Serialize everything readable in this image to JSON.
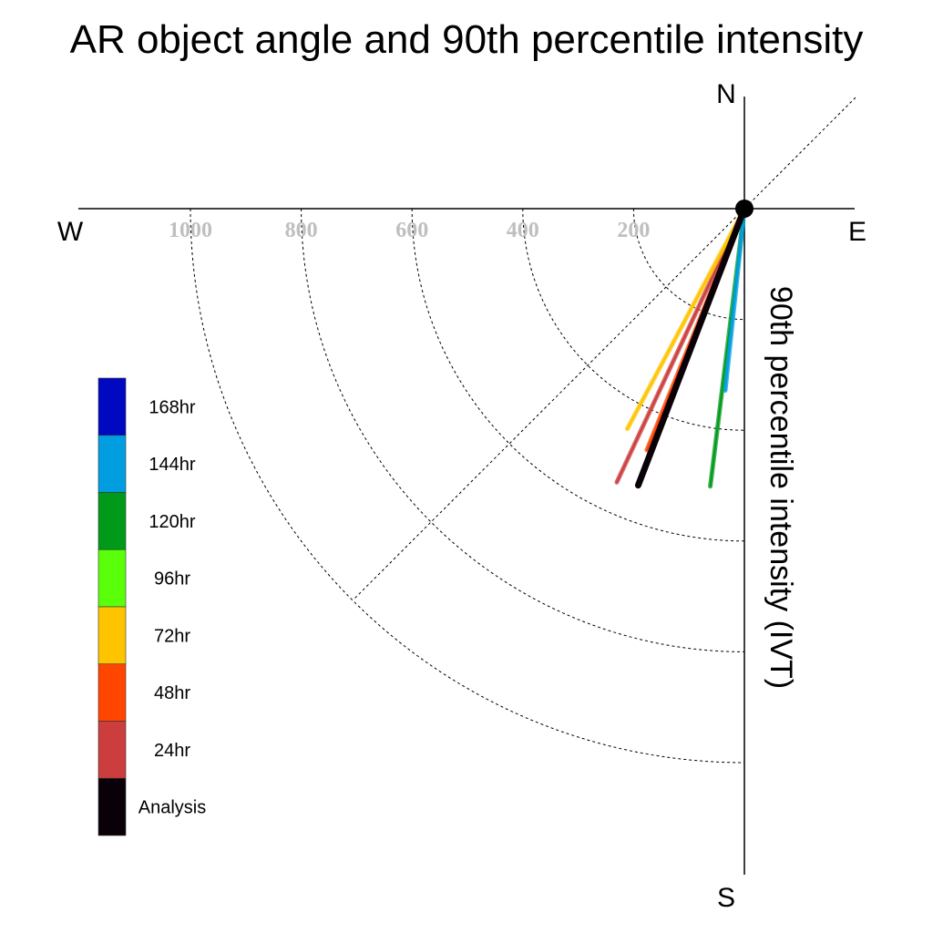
{
  "chart_data": {
    "type": "polar-line",
    "title": "AR object angle and 90th percentile intensity",
    "ylabel": "90th percentile intensity (IVT)",
    "compass": {
      "north": "N",
      "south": "S",
      "east": "E",
      "west": "W"
    },
    "radial_ticks": [
      200,
      400,
      600,
      800,
      1000
    ],
    "radial_range": [
      0,
      1180
    ],
    "series": [
      {
        "name": "120hr",
        "color": "#00991a",
        "angle_deg": 187,
        "intensity": 505
      },
      {
        "name": "144hr",
        "color": "#009ee0",
        "angle_deg": 186,
        "intensity": 330
      },
      {
        "name": "24hr",
        "color": "#cc3d3d",
        "angle_deg": 205,
        "intensity": 545
      },
      {
        "name": "48hr",
        "color": "#ff4500",
        "angle_deg": 202,
        "intensity": 470
      },
      {
        "name": "72hr",
        "color": "#ffc400",
        "angle_deg": 208,
        "intensity": 450
      },
      {
        "name": "Analysis",
        "color": "#0a0008",
        "angle_deg": 201,
        "intensity": 535
      }
    ],
    "legend": [
      {
        "label": "168hr",
        "color": "#0008c2"
      },
      {
        "label": "144hr",
        "color": "#009ee0"
      },
      {
        "label": "120hr",
        "color": "#00991a"
      },
      {
        "label": "96hr",
        "color": "#5aff0a"
      },
      {
        "label": "72hr",
        "color": "#ffc400"
      },
      {
        "label": "48hr",
        "color": "#ff4500"
      },
      {
        "label": "24hr",
        "color": "#cc3d3d"
      },
      {
        "label": "Analysis",
        "color": "#0a0008"
      }
    ]
  }
}
